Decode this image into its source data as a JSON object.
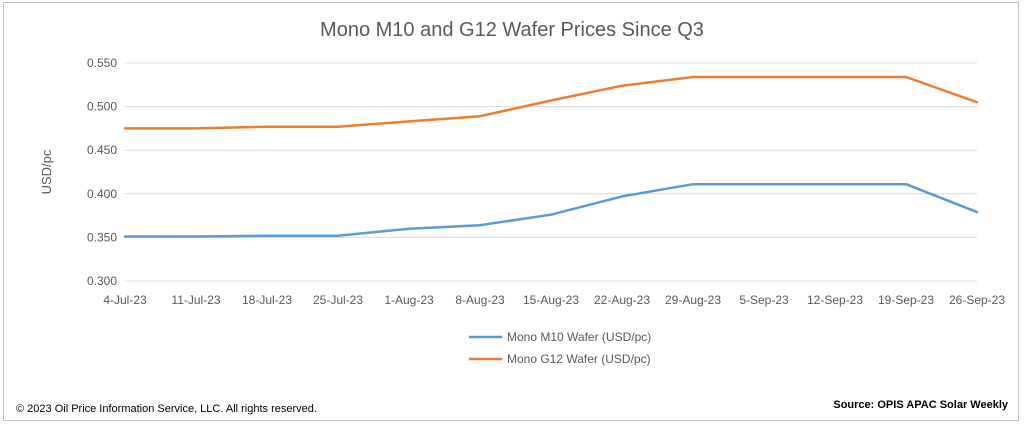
{
  "chart_data": {
    "type": "line",
    "title": "Mono M10 and G12 Wafer Prices Since Q3",
    "xlabel": "",
    "ylabel": "USD/pc",
    "ylim": [
      0.3,
      0.55
    ],
    "yticks": [
      "0.300",
      "0.350",
      "0.400",
      "0.450",
      "0.500",
      "0.550"
    ],
    "grid": true,
    "legend_position": "bottom",
    "categories": [
      "4-Jul-23",
      "11-Jul-23",
      "18-Jul-23",
      "25-Jul-23",
      "1-Aug-23",
      "8-Aug-23",
      "15-Aug-23",
      "22-Aug-23",
      "29-Aug-23",
      "5-Sep-23",
      "12-Sep-23",
      "19-Sep-23",
      "26-Sep-23"
    ],
    "series": [
      {
        "name": "Mono M10 Wafer (USD/pc)",
        "color": "#5b9bd5",
        "values": [
          0.351,
          0.351,
          0.352,
          0.352,
          0.36,
          0.364,
          0.376,
          0.397,
          0.411,
          0.411,
          0.411,
          0.411,
          0.379
        ]
      },
      {
        "name": "Mono G12 Wafer (USD/pc)",
        "color": "#ed7d31",
        "values": [
          0.475,
          0.475,
          0.477,
          0.477,
          0.483,
          0.489,
          0.507,
          0.524,
          0.534,
          0.534,
          0.534,
          0.534,
          0.505
        ]
      }
    ]
  },
  "footer": {
    "copyright": "© 2023 Oil Price Information Service, LLC. All rights reserved.",
    "source": "Source: OPIS APAC Solar Weekly"
  },
  "colors": {
    "gridline": "#d9d9d9",
    "text": "#595959"
  }
}
